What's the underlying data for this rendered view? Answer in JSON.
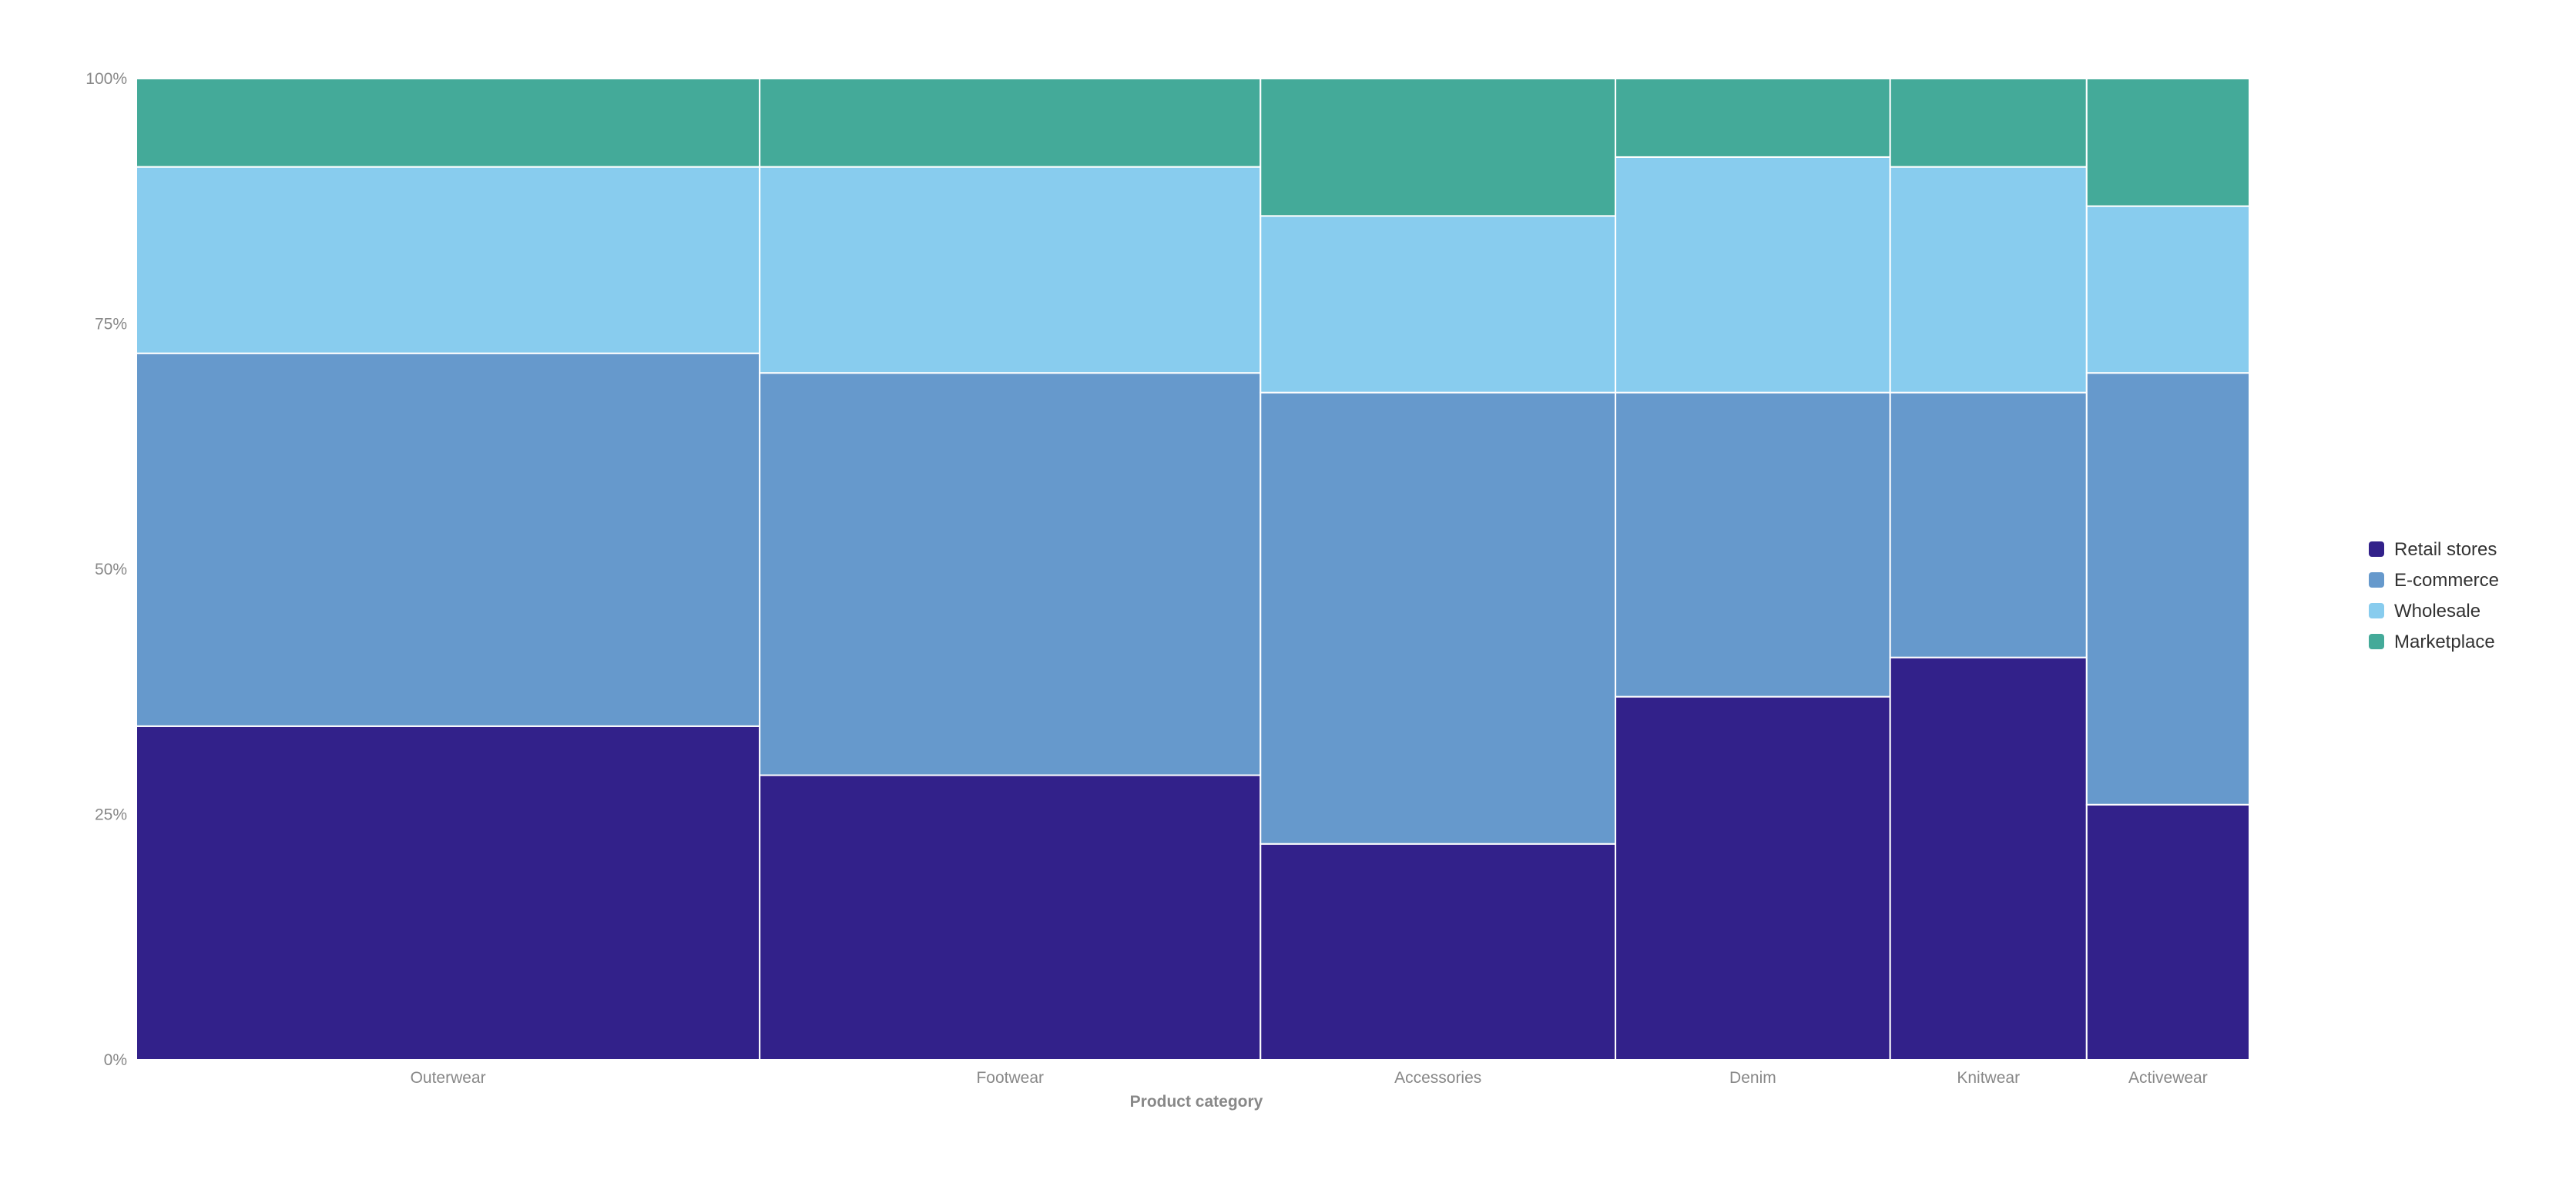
{
  "chart_data": {
    "type": "mosaic",
    "title": "",
    "xlabel": "Product category",
    "ylabel": "",
    "ylim": [
      0,
      100
    ],
    "yticks": [
      "0%",
      "25%",
      "50%",
      "75%",
      "100%"
    ],
    "grid": false,
    "legend_position": "right",
    "categories": [
      "Outerwear",
      "Footwear",
      "Accessories",
      "Denim",
      "Knitwear",
      "Activewear"
    ],
    "category_widths": [
      29.5,
      23.7,
      16.8,
      13.0,
      9.3,
      7.7
    ],
    "series": [
      {
        "name": "Retail stores",
        "color": "#32218a",
        "values": [
          34,
          29,
          22,
          37,
          41,
          26
        ]
      },
      {
        "name": "E-commerce",
        "color": "#6699cc",
        "values": [
          38,
          41,
          46,
          31,
          27,
          44
        ]
      },
      {
        "name": "Wholesale",
        "color": "#88ccee",
        "values": [
          19,
          21,
          18,
          24,
          23,
          17
        ]
      },
      {
        "name": "Marketplace",
        "color": "#44aa99",
        "values": [
          9,
          9,
          14,
          8,
          9,
          13
        ]
      }
    ]
  }
}
